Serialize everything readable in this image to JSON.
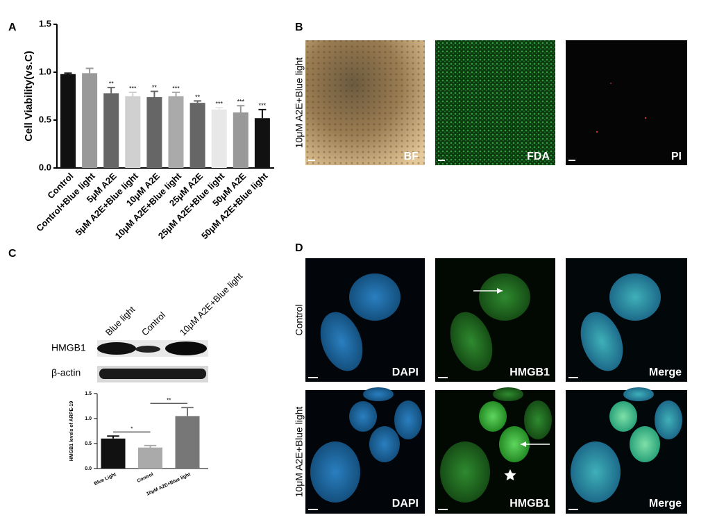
{
  "panel_labels": [
    "A",
    "B",
    "C",
    "D"
  ],
  "chart_data": [
    {
      "type": "bar",
      "ylabel": "Cell Viability(vs.C)",
      "categories": [
        "Control",
        "Control+Blue light",
        "5μM A2E",
        "5μM A2E+Blue light",
        "10μM A2E",
        "10μM A2E+Blue light",
        "25μM A2E",
        "25μM A2E+Blue light",
        "50μM A2E",
        "50μM A2E+Blue light"
      ],
      "values": [
        0.98,
        0.99,
        0.78,
        0.75,
        0.74,
        0.75,
        0.68,
        0.61,
        0.58,
        0.52
      ],
      "errors": [
        0.01,
        0.05,
        0.06,
        0.04,
        0.06,
        0.04,
        0.02,
        0.02,
        0.07,
        0.09
      ],
      "colors": [
        "#111111",
        "#999999",
        "#666666",
        "#d0d0d0",
        "#666666",
        "#aaaaaa",
        "#666666",
        "#e8e8e8",
        "#999999",
        "#111111"
      ],
      "significance": [
        null,
        null,
        "**",
        "***",
        "**",
        "***",
        "**",
        "***",
        "***",
        "***"
      ],
      "ylim": [
        0,
        1.5
      ],
      "yticks": [
        {
          "value": 0,
          "label": "0.0"
        },
        0.5,
        {
          "value": 1,
          "label": "1.0"
        },
        1.5
      ]
    },
    {
      "type": "bar",
      "ylabel": "HMGB1 levels of ARPE-19",
      "categories": [
        "Blue Light",
        "Control",
        "10μM A2E+Blue light"
      ],
      "values": [
        0.6,
        0.42,
        1.05
      ],
      "errors": [
        0.05,
        0.04,
        0.17
      ],
      "colors": [
        "#111111",
        "#aaaaaa",
        "#777777"
      ],
      "bracket_labels": [
        "*",
        "**"
      ],
      "ylim": [
        0,
        1.5
      ],
      "yticks": [
        {
          "value": 0,
          "label": "0.0"
        },
        0.5,
        {
          "value": 1,
          "label": "1.0"
        },
        1.5
      ]
    }
  ],
  "panel_b": {
    "row_label": "10μM A2E+Blue light",
    "image_labels": [
      "BF",
      "FDA",
      "PI"
    ]
  },
  "blot": {
    "lane_labels": [
      "Blue light",
      "Control",
      "10μM A2E+Blue light"
    ],
    "row_labels": [
      "HMGB1",
      "β-actin"
    ]
  },
  "panel_d": {
    "row_labels": [
      "Control",
      "10μM A2E+Blue light"
    ],
    "image_labels": [
      "DAPI",
      "HMGB1",
      "Merge"
    ]
  }
}
